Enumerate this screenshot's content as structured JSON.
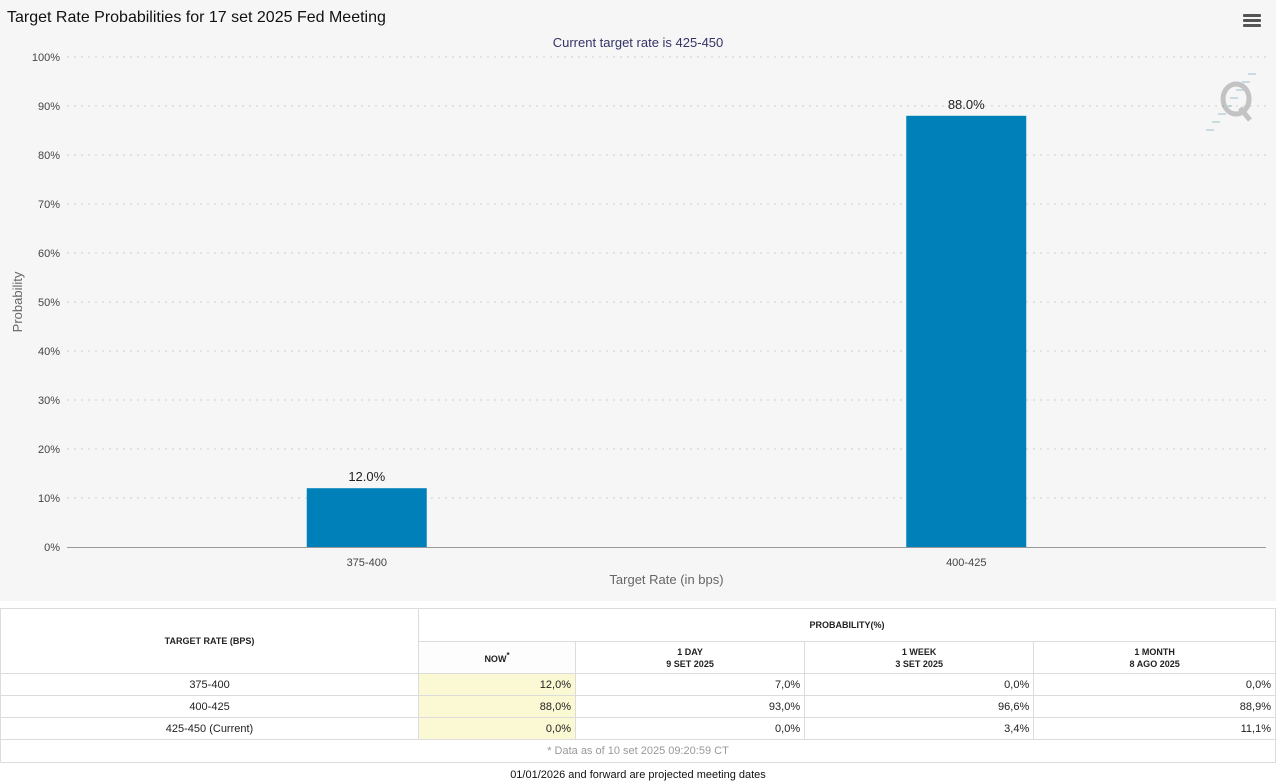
{
  "title": "Target Rate Probabilities for 17 set 2025 Fed Meeting",
  "subtitle": "Current target rate is 425-450",
  "chart_data": {
    "type": "bar",
    "categories": [
      "375-400",
      "400-425"
    ],
    "values": [
      12.0,
      88.0
    ],
    "value_labels": [
      "12.0%",
      "88.0%"
    ],
    "title": "Target Rate Probabilities for 17 set 2025 Fed Meeting",
    "subtitle": "Current target rate is 425-450",
    "xlabel": "Target Rate (in bps)",
    "ylabel": "Probability",
    "ylim": [
      0,
      100
    ],
    "yticks": [
      "0%",
      "10%",
      "20%",
      "30%",
      "40%",
      "50%",
      "60%",
      "70%",
      "80%",
      "90%",
      "100%"
    ],
    "bar_color": "#0080b9",
    "grid": true
  },
  "table": {
    "target_header": "TARGET RATE (BPS)",
    "probability_header": "PROBABILITY(%)",
    "columns": [
      {
        "line1": "NOW",
        "line2": "",
        "marker": "*"
      },
      {
        "line1": "1 DAY",
        "line2": "9 SET 2025",
        "marker": ""
      },
      {
        "line1": "1 WEEK",
        "line2": "3 SET 2025",
        "marker": ""
      },
      {
        "line1": "1 MONTH",
        "line2": "8 AGO 2025",
        "marker": ""
      }
    ],
    "rows": [
      {
        "rate": "375-400",
        "values": [
          "12,0%",
          "7,0%",
          "0,0%",
          "0,0%"
        ]
      },
      {
        "rate": "400-425",
        "values": [
          "88,0%",
          "93,0%",
          "96,6%",
          "88,9%"
        ]
      },
      {
        "rate": "425-450 (Current)",
        "values": [
          "0,0%",
          "0,0%",
          "3,4%",
          "11,1%"
        ]
      }
    ],
    "footnote": "* Data as of 10 set 2025 09:20:59 CT"
  },
  "projected_note": "01/01/2026 and forward are projected meeting dates",
  "colors": {
    "bar": "#0080b9",
    "now_highlight": "#fbf8d4",
    "panel": "#f6f6f6"
  }
}
